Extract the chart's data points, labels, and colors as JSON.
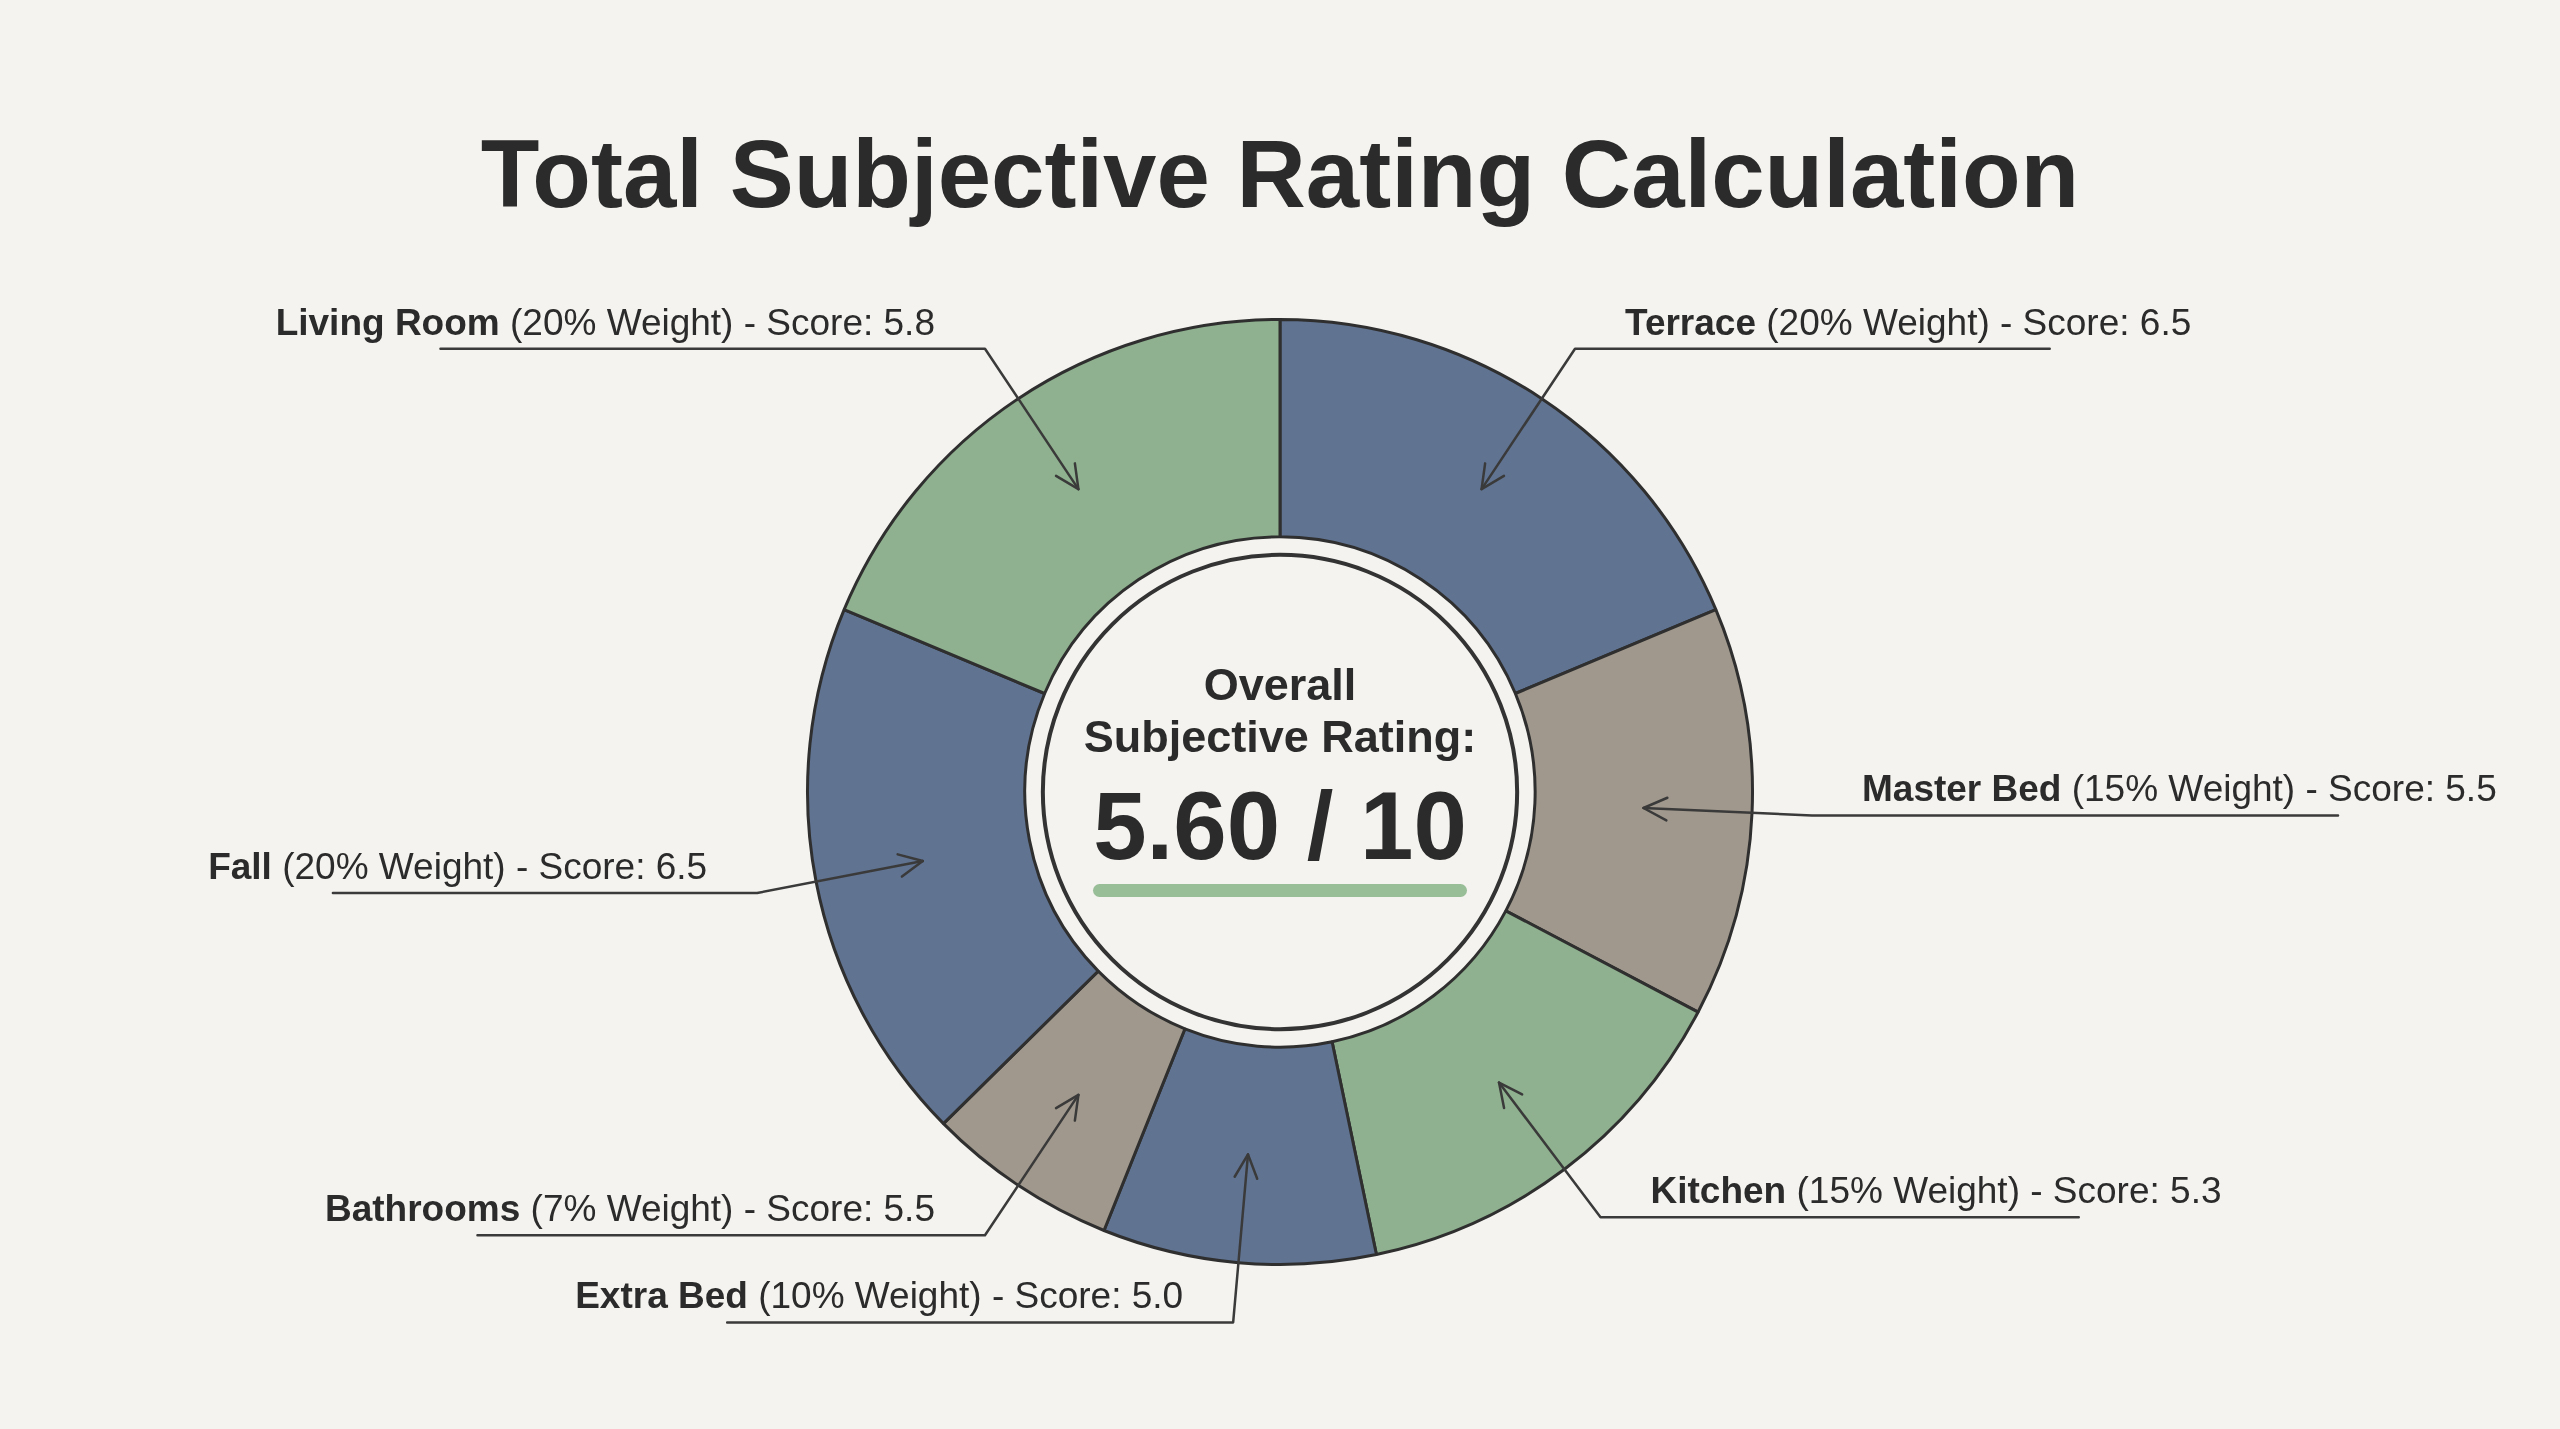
{
  "chart_data": {
    "type": "donut",
    "title": "Total Subjective Rating Calculation",
    "categories": [
      "Terrace",
      "Master Bed",
      "Kitchen",
      "Extra Bed",
      "Bathrooms",
      "Fall",
      "Living Room"
    ],
    "values": [
      20,
      15,
      15,
      10,
      7,
      20,
      20
    ],
    "colors": [
      "#607391",
      "#a0988c",
      "#8fb18f",
      "#607391",
      "#a0988c",
      "#607391",
      "#8fb18f"
    ],
    "value_labels": [
      "(20% Weight) - Score: 6.5",
      "(15% Weight) - Score: 5.5",
      "(15% Weight) - Score: 5.3",
      "(10% Weight) - Score: 5.0",
      "(7% Weight) - Score: 5.5",
      "(20% Weight) - Score: 6.5",
      "(20% Weight) - Score: 5.8"
    ],
    "annotations": [
      "Overall Subjective Rating:",
      "5.60 / 10"
    ]
  }
}
